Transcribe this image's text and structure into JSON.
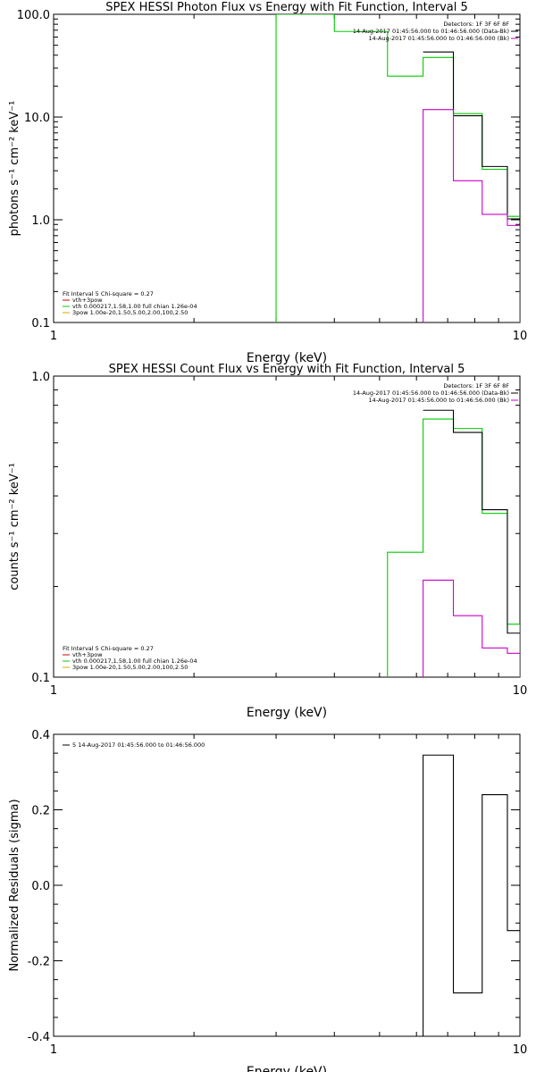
{
  "chart_data": [
    {
      "type": "line",
      "title": "SPEX HESSI Photon Flux vs Energy with Fit Function, Interval 5",
      "xlabel": "Energy (keV)",
      "ylabel": "photons s⁻¹ cm⁻² keV⁻¹",
      "xscale": "log",
      "yscale": "log",
      "xlim": [
        1,
        10
      ],
      "ylim": [
        0.1,
        100
      ],
      "xticks": [
        {
          "v": 1,
          "label": "1"
        },
        {
          "v": 10,
          "label": "10"
        }
      ],
      "yticks": [
        {
          "v": 0.1,
          "label": "0.1"
        },
        {
          "v": 1,
          "label": "1.0"
        },
        {
          "v": 10,
          "label": "10.0"
        },
        {
          "v": 100,
          "label": "100.0"
        }
      ],
      "legend_right": {
        "header": "Detectors: 1F 3F 6F 8F",
        "entries": [
          {
            "text": "14-Aug-2017 01:45:56.000 to 01:46:56.000 (Data-Bk)",
            "color": "#000000"
          },
          {
            "text": "14-Aug-2017 01:45:56.000 to 01:46:56.000 (Bk)",
            "color": "#cc00cc"
          }
        ]
      },
      "legend_left": {
        "header": "Fit Interval 5   Chi-square = 0.27",
        "entries": [
          {
            "text": "vth+3pow",
            "color": "#dd0000"
          },
          {
            "text": "vth 0.000217,1.58,1.00  full chian 1.26e-04",
            "color": "#00cc00"
          },
          {
            "text": "3pow 1.00e-20,1.50,5.00,2.00,100,2.50",
            "color": "#ddaa00"
          }
        ]
      },
      "series": [
        {
          "color": "#00cc00",
          "segments": [
            {
              "x0": 3,
              "x1": 4,
              "y": 100
            },
            {
              "x0": 4,
              "x1": 5.2,
              "y": 68
            },
            {
              "x0": 5.2,
              "x1": 6.2,
              "y": 25
            },
            {
              "x0": 6.2,
              "x1": 7.2,
              "y": 38
            },
            {
              "x0": 7.2,
              "x1": 8.3,
              "y": 10.8
            },
            {
              "x0": 8.3,
              "x1": 9.4,
              "y": 3.1
            },
            {
              "x0": 9.4,
              "x1": 10,
              "y": 1.08
            }
          ],
          "drop_left_to": 0.1
        },
        {
          "color": "#000000",
          "segments": [
            {
              "x0": 6.2,
              "x1": 7.2,
              "y": 43
            },
            {
              "x0": 7.2,
              "x1": 8.3,
              "y": 10.3
            },
            {
              "x0": 8.3,
              "x1": 9.4,
              "y": 3.3
            },
            {
              "x0": 9.4,
              "x1": 10,
              "y": 1.02
            }
          ]
        },
        {
          "color": "#cc00cc",
          "segments": [
            {
              "x0": 6.2,
              "x1": 7.2,
              "y": 11.8
            },
            {
              "x0": 7.2,
              "x1": 8.3,
              "y": 2.4
            },
            {
              "x0": 8.3,
              "x1": 9.4,
              "y": 1.13
            },
            {
              "x0": 9.4,
              "x1": 10,
              "y": 0.88
            }
          ],
          "drop_left_to": 0.1,
          "drop_right_to": 0.1
        }
      ]
    },
    {
      "type": "line",
      "title": "SPEX HESSI Count Flux vs Energy with Fit Function, Interval 5",
      "xlabel": "Energy (keV)",
      "ylabel": "counts s⁻¹ cm⁻² keV⁻¹",
      "xscale": "log",
      "yscale": "log",
      "xlim": [
        1,
        10
      ],
      "ylim": [
        0.1,
        1.0
      ],
      "xticks": [
        {
          "v": 1,
          "label": "1"
        },
        {
          "v": 10,
          "label": "10"
        }
      ],
      "yticks": [
        {
          "v": 0.1,
          "label": "0.1"
        },
        {
          "v": 1,
          "label": "1.0"
        }
      ],
      "legend_right": {
        "header": "Detectors: 1F 3F 6F 8F",
        "entries": [
          {
            "text": "14-Aug-2017 01:45:56.000 to 01:46:56.000 (Data-Bk)",
            "color": "#000000"
          },
          {
            "text": "14-Aug-2017 01:45:56.000 to 01:46:56.000 (Bk)",
            "color": "#cc00cc"
          }
        ]
      },
      "legend_left": {
        "header": "Fit Interval 5   Chi-square = 0.27",
        "entries": [
          {
            "text": "vth+3pow",
            "color": "#dd0000"
          },
          {
            "text": "vth 0.000217,1.58,1.00  full chian 1.26e-04",
            "color": "#00cc00"
          },
          {
            "text": "3pow 1.00e-20,1.50,5.00,2.00,100,2.50",
            "color": "#ddaa00"
          }
        ]
      },
      "series": [
        {
          "color": "#00cc00",
          "segments": [
            {
              "x0": 5.2,
              "x1": 6.2,
              "y": 0.26
            },
            {
              "x0": 6.2,
              "x1": 7.2,
              "y": 0.72
            },
            {
              "x0": 7.2,
              "x1": 8.3,
              "y": 0.67
            },
            {
              "x0": 8.3,
              "x1": 9.4,
              "y": 0.35
            },
            {
              "x0": 9.4,
              "x1": 10,
              "y": 0.15
            }
          ],
          "drop_left_to": 0.1,
          "drop_right_to": 0.1
        },
        {
          "color": "#000000",
          "segments": [
            {
              "x0": 6.2,
              "x1": 7.2,
              "y": 0.77
            },
            {
              "x0": 7.2,
              "x1": 8.3,
              "y": 0.65
            },
            {
              "x0": 8.3,
              "x1": 9.4,
              "y": 0.36
            },
            {
              "x0": 9.4,
              "x1": 10,
              "y": 0.14
            }
          ]
        },
        {
          "color": "#cc00cc",
          "segments": [
            {
              "x0": 6.2,
              "x1": 7.2,
              "y": 0.21
            },
            {
              "x0": 7.2,
              "x1": 8.3,
              "y": 0.16
            },
            {
              "x0": 8.3,
              "x1": 9.4,
              "y": 0.125
            },
            {
              "x0": 9.4,
              "x1": 10,
              "y": 0.12
            }
          ],
          "drop_left_to": 0.1
        }
      ]
    },
    {
      "type": "line",
      "title": "",
      "xlabel": "Energy (keV)",
      "ylabel": "Normalized Residuals (sigma)",
      "xscale": "log",
      "yscale": "linear",
      "xlim": [
        1,
        10
      ],
      "ylim": [
        -0.4,
        0.4
      ],
      "xticks": [
        {
          "v": 1,
          "label": "1"
        },
        {
          "v": 10,
          "label": "10"
        }
      ],
      "yticks": [
        {
          "v": -0.4,
          "label": "-0.4"
        },
        {
          "v": -0.2,
          "label": "-0.2"
        },
        {
          "v": 0,
          "label": "0.0"
        },
        {
          "v": 0.2,
          "label": "0.2"
        },
        {
          "v": 0.4,
          "label": "0.4"
        }
      ],
      "legend_left": {
        "header": "",
        "entries": [
          {
            "text": "5  14-Aug-2017 01:45:56.000 to 01:46:56.000",
            "color": "#000000"
          }
        ]
      },
      "series": [
        {
          "color": "#000000",
          "segments": [
            {
              "x0": 6.2,
              "x1": 7.2,
              "y": 0.345
            },
            {
              "x0": 7.2,
              "x1": 8.3,
              "y": -0.285
            },
            {
              "x0": 8.3,
              "x1": 9.4,
              "y": 0.24
            },
            {
              "x0": 9.4,
              "x1": 10,
              "y": -0.12
            }
          ],
          "drop_left_to": -0.4
        }
      ]
    }
  ]
}
